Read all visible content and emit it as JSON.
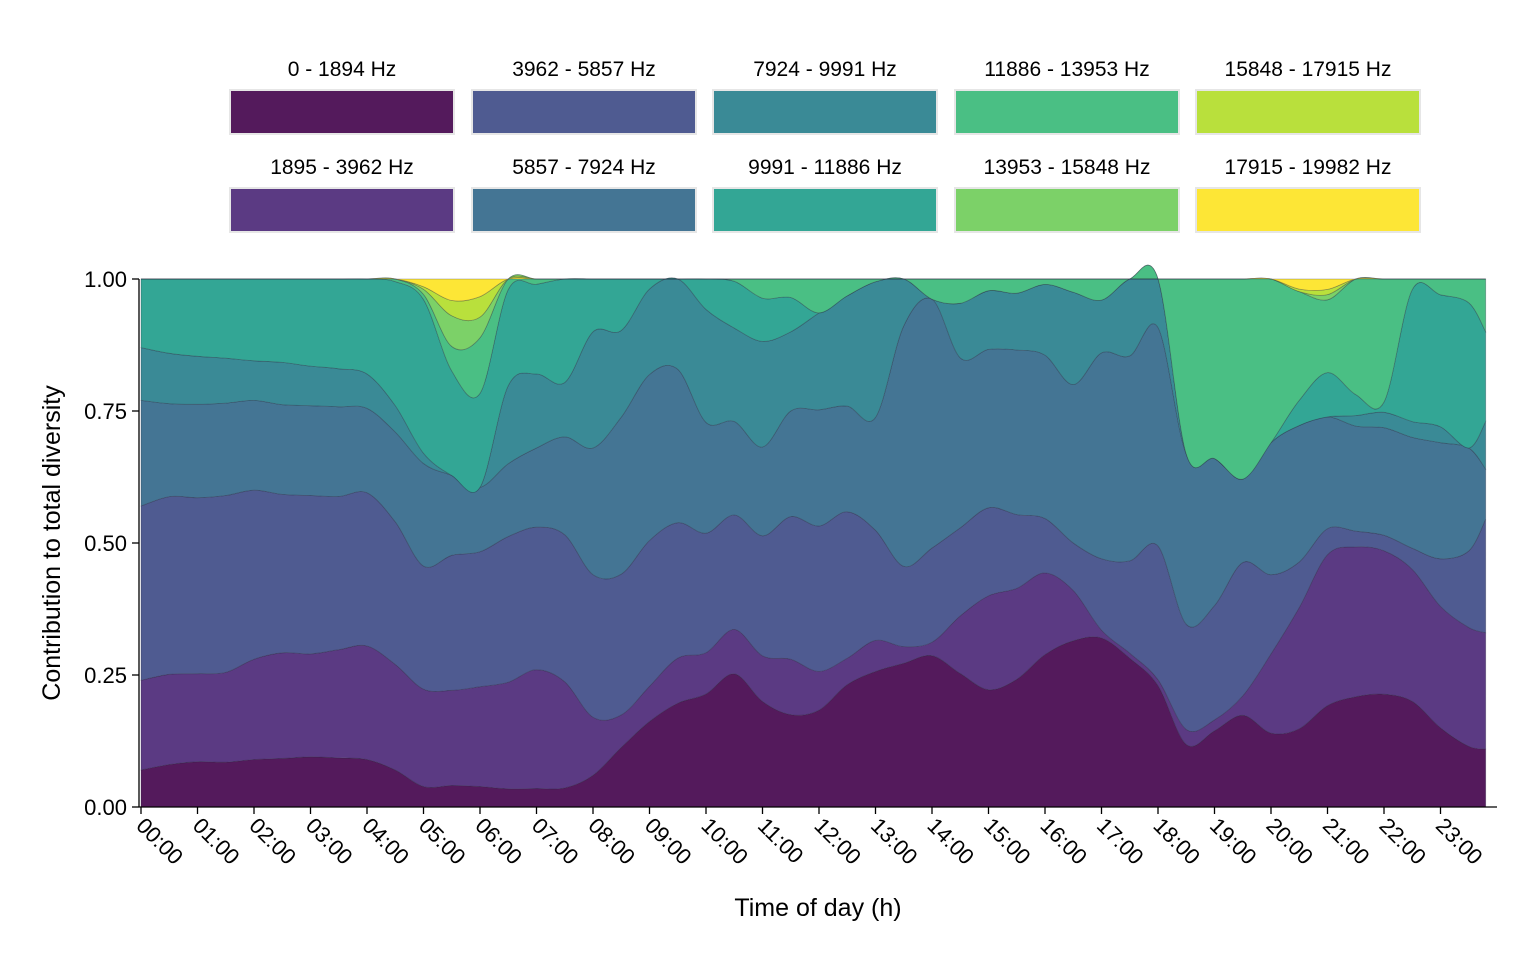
{
  "chart_data": {
    "type": "area",
    "stacked": true,
    "normalized": true,
    "xlabel": "Time of day (h)",
    "ylabel": "Contribution to total diversity",
    "ylim": [
      0,
      1
    ],
    "y_ticks": [
      "0.00",
      "0.25",
      "0.50",
      "0.75",
      "1.00"
    ],
    "x_ticks": [
      "00:00",
      "01:00",
      "02:00",
      "03:00",
      "04:00",
      "05:00",
      "06:00",
      "07:00",
      "08:00",
      "09:00",
      "10:00",
      "11:00",
      "12:00",
      "13:00",
      "14:00",
      "15:00",
      "16:00",
      "17:00",
      "18:00",
      "19:00",
      "20:00",
      "21:00",
      "22:00",
      "23:00"
    ],
    "grid": false,
    "legend_position": "top",
    "x_hours": [
      0,
      0.5,
      1,
      1.5,
      2,
      2.5,
      3,
      3.5,
      4,
      4.5,
      5,
      5.5,
      6,
      6.5,
      7,
      7.5,
      8,
      8.5,
      9,
      9.5,
      10,
      10.5,
      11,
      11.5,
      12,
      12.5,
      13,
      13.5,
      14,
      14.5,
      15,
      15.5,
      16,
      16.5,
      17,
      17.5,
      18,
      18.5,
      19,
      19.5,
      20,
      20.5,
      21,
      21.5,
      22,
      22.5,
      23,
      23.5,
      23.8
    ],
    "series": [
      {
        "name": "0 - 1894 Hz",
        "color": "#541a5c",
        "values": [
          0.07,
          0.08,
          0.085,
          0.085,
          0.09,
          0.092,
          0.095,
          0.093,
          0.09,
          0.07,
          0.04,
          0.035,
          0.035,
          0.035,
          0.035,
          0.035,
          0.06,
          0.11,
          0.17,
          0.23,
          0.26,
          0.285,
          0.22,
          0.175,
          0.2,
          0.255,
          0.24,
          0.215,
          0.225,
          0.22,
          0.2,
          0.225,
          0.28,
          0.315,
          0.32,
          0.29,
          0.2,
          0.125,
          0.14,
          0.165,
          0.14,
          0.155,
          0.195,
          0.21,
          0.22,
          0.2,
          0.15,
          0.115,
          0.11
        ]
      },
      {
        "name": "1895 - 3962 Hz",
        "color": "#5b3a83",
        "values": [
          0.17,
          0.17,
          0.165,
          0.17,
          0.19,
          0.2,
          0.195,
          0.205,
          0.215,
          0.2,
          0.19,
          0.155,
          0.17,
          0.205,
          0.225,
          0.195,
          0.11,
          0.06,
          0.07,
          0.1,
          0.095,
          0.095,
          0.095,
          0.105,
          0.08,
          0.055,
          0.055,
          0.025,
          0.02,
          0.095,
          0.16,
          0.16,
          0.15,
          0.095,
          0.015,
          0.01,
          0.01,
          0.03,
          0.02,
          0.035,
          0.15,
          0.24,
          0.29,
          0.285,
          0.28,
          0.25,
          0.23,
          0.225,
          0.22
        ]
      },
      {
        "name": "3962 - 5857 Hz",
        "color": "#4f5b91",
        "values": [
          0.33,
          0.335,
          0.33,
          0.335,
          0.32,
          0.3,
          0.3,
          0.29,
          0.29,
          0.27,
          0.24,
          0.22,
          0.23,
          0.28,
          0.27,
          0.27,
          0.27,
          0.26,
          0.29,
          0.3,
          0.275,
          0.245,
          0.25,
          0.27,
          0.3,
          0.305,
          0.195,
          0.12,
          0.14,
          0.145,
          0.15,
          0.13,
          0.1,
          0.09,
          0.135,
          0.18,
          0.22,
          0.21,
          0.21,
          0.24,
          0.15,
          0.09,
          0.05,
          0.03,
          0.03,
          0.04,
          0.09,
          0.145,
          0.215
        ]
      },
      {
        "name": "5857 - 7924 Hz",
        "color": "#447594",
        "values": [
          0.2,
          0.175,
          0.175,
          0.175,
          0.17,
          0.17,
          0.17,
          0.17,
          0.16,
          0.17,
          0.2,
          0.13,
          0.11,
          0.14,
          0.15,
          0.18,
          0.24,
          0.29,
          0.33,
          0.34,
          0.255,
          0.2,
          0.185,
          0.2,
          0.24,
          0.22,
          0.2,
          0.36,
          0.37,
          0.28,
          0.27,
          0.29,
          0.3,
          0.3,
          0.39,
          0.4,
          0.36,
          0.34,
          0.27,
          0.15,
          0.25,
          0.27,
          0.215,
          0.2,
          0.21,
          0.21,
          0.22,
          0.195,
          0.095
        ]
      },
      {
        "name": "7924 - 9991 Hz",
        "color": "#3a8a96",
        "values": [
          0.1,
          0.095,
          0.09,
          0.085,
          0.075,
          0.08,
          0.075,
          0.072,
          0.065,
          0.05,
          0.02,
          0.0,
          0.0,
          0.15,
          0.14,
          0.1,
          0.22,
          0.16,
          0.17,
          0.2,
          0.26,
          0.2,
          0.22,
          0.15,
          0.2,
          0.23,
          0.24,
          0.07,
          0.0,
          0.09,
          0.1,
          0.1,
          0.13,
          0.175,
          0.1,
          0.15,
          0.08,
          0.0,
          0.0,
          0.0,
          0.0,
          0.0,
          0.0,
          0.02,
          0.03,
          0.03,
          0.03,
          0.0,
          0.09
        ]
      },
      {
        "name": "9991 - 11886 Hz",
        "color": "#33a695",
        "values": [
          0.13,
          0.14,
          0.145,
          0.15,
          0.155,
          0.158,
          0.165,
          0.17,
          0.18,
          0.235,
          0.3,
          0.17,
          0.16,
          0.185,
          0.17,
          0.19,
          0.1,
          0.095,
          0.02,
          0.0,
          0.07,
          0.1,
          0.09,
          0.065,
          0.0,
          0.0,
          0.0,
          0.0,
          0.0,
          0.0,
          0.0,
          0.0,
          0.0,
          0.0,
          0.0,
          0.0,
          0.0,
          0.0,
          0.0,
          0.0,
          0.0,
          0.05,
          0.085,
          0.04,
          0.02,
          0.25,
          0.25,
          0.275,
          0.17
        ]
      },
      {
        "name": "11886 - 13953 Hz",
        "color": "#4abf84",
        "values": [
          0.0,
          0.0,
          0.0,
          0.0,
          0.0,
          0.0,
          0.0,
          0.0,
          0.0,
          0.005,
          0.01,
          0.04,
          0.095,
          0.02,
          0.01,
          0.0,
          0.0,
          0.0,
          0.0,
          0.0,
          0.0,
          0.005,
          0.04,
          0.035,
          0.07,
          0.035,
          0.005,
          0.0,
          0.03,
          0.04,
          0.02,
          0.025,
          0.01,
          0.025,
          0.04,
          0.0,
          0.0,
          0.35,
          0.33,
          0.36,
          0.31,
          0.215,
          0.14,
          0.22,
          0.24,
          0.02,
          0.03,
          0.045,
          0.1
        ]
      },
      {
        "name": "13953 - 15848 Hz",
        "color": "#7cd168",
        "values": [
          0.0,
          0.0,
          0.0,
          0.0,
          0.0,
          0.0,
          0.0,
          0.0,
          0.0,
          0.0,
          0.01,
          0.05,
          0.035,
          0.0,
          0.0,
          0.0,
          0.0,
          0.0,
          0.0,
          0.0,
          0.0,
          0.0,
          0.0,
          0.0,
          0.0,
          0.0,
          0.0,
          0.0,
          0.0,
          0.0,
          0.0,
          0.0,
          0.0,
          0.0,
          0.0,
          0.0,
          0.0,
          0.0,
          0.0,
          0.0,
          0.0,
          0.0,
          0.01,
          0.0,
          0.0,
          0.0,
          0.0,
          0.0,
          0.0
        ]
      },
      {
        "name": "15848 - 17915 Hz",
        "color": "#b9e03c",
        "values": [
          0.0,
          0.0,
          0.0,
          0.0,
          0.0,
          0.0,
          0.0,
          0.0,
          0.0,
          0.0,
          0.005,
          0.025,
          0.035,
          0.0,
          0.0,
          0.0,
          0.0,
          0.0,
          0.0,
          0.0,
          0.0,
          0.0,
          0.0,
          0.0,
          0.0,
          0.0,
          0.0,
          0.0,
          0.0,
          0.0,
          0.0,
          0.0,
          0.0,
          0.0,
          0.0,
          0.0,
          0.0,
          0.0,
          0.0,
          0.0,
          0.0,
          0.005,
          0.01,
          0.0,
          0.0,
          0.0,
          0.0,
          0.0,
          0.0
        ]
      },
      {
        "name": "17915 - 19982 Hz",
        "color": "#fde636",
        "values": [
          0.0,
          0.0,
          0.0,
          0.0,
          0.0,
          0.0,
          0.0,
          0.0,
          0.0,
          0.0,
          0.015,
          0.035,
          0.03,
          0.0,
          0.0,
          0.0,
          0.0,
          0.0,
          0.0,
          0.0,
          0.0,
          0.0,
          0.0,
          0.0,
          0.0,
          0.0,
          0.0,
          0.0,
          0.0,
          0.0,
          0.0,
          0.0,
          0.0,
          0.0,
          0.0,
          0.0,
          0.0,
          0.0,
          0.0,
          0.0,
          0.0,
          0.02,
          0.02,
          0.0,
          0.0,
          0.0,
          0.0,
          0.0,
          0.0
        ]
      }
    ]
  }
}
